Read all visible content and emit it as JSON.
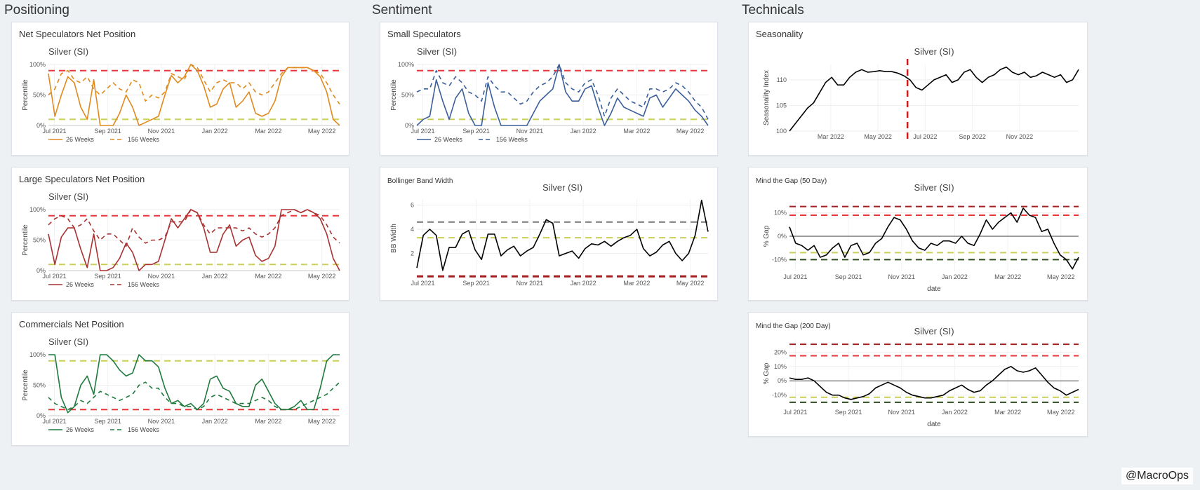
{
  "sections": [
    {
      "key": "positioning",
      "label": "Positioning"
    },
    {
      "key": "sentiment",
      "label": "Sentiment"
    },
    {
      "key": "technicals",
      "label": "Technicals"
    }
  ],
  "watermark": "@MacroOps",
  "colors": {
    "orange": "#e08a1e",
    "blue": "#3a5f9a",
    "maroon": "#a83232",
    "green": "#1f7a3d",
    "red_band": "#e8363b",
    "yellow_band": "#c9cf57",
    "dark_red_band": "#a31f1f",
    "dark_green_band": "#2e4b1d",
    "gray_band": "#777777",
    "seasonal_marker": "#d01a1a"
  },
  "cards": {
    "net_spec": {
      "title": "Net Speculators Net Position"
    },
    "large_spec": {
      "title": "Large Speculators Net Position"
    },
    "commercials": {
      "title": "Commercials Net Position"
    },
    "small_spec": {
      "title": "Small Speculators"
    },
    "bollinger": {
      "title": "Bollinger Band Width"
    },
    "seasonality": {
      "title": "Seasonality"
    },
    "gap50": {
      "title": "Mind the Gap (50 Day)"
    },
    "gap200": {
      "title": "Mind the Gap (200 Day)"
    }
  },
  "chart_data": [
    {
      "id": "net_spec",
      "type": "line",
      "title": "Silver (SI)",
      "ylabel": "Percentile",
      "xlabel": "",
      "ylim": [
        0,
        100
      ],
      "yticks": [
        0,
        50,
        100
      ],
      "ytick_labels": [
        "0%",
        "50%",
        "100%"
      ],
      "xlim": [
        0,
        49
      ],
      "xticks": [
        1,
        10,
        19,
        28,
        37,
        46
      ],
      "xtick_labels": [
        "Jul 2021",
        "Sep 2021",
        "Nov 2021",
        "Jan 2022",
        "Mar 2022",
        "May 2022"
      ],
      "hlines": [
        {
          "y": 90,
          "color": "red_band"
        },
        {
          "y": 10,
          "color": "yellow_band"
        }
      ],
      "legend": "bottom-left",
      "series": [
        {
          "name": "26 Weeks",
          "dash": false,
          "color": "orange",
          "values": [
            85,
            15,
            50,
            80,
            70,
            30,
            10,
            75,
            0,
            0,
            0,
            20,
            50,
            30,
            0,
            5,
            10,
            15,
            50,
            82,
            70,
            80,
            100,
            90,
            65,
            30,
            35,
            60,
            70,
            30,
            40,
            55,
            20,
            15,
            20,
            40,
            80,
            95,
            95,
            95,
            95,
            90,
            80,
            55,
            10,
            0
          ]
        },
        {
          "name": "156 Weeks",
          "dash": true,
          "color": "orange",
          "values": [
            50,
            60,
            85,
            90,
            75,
            70,
            80,
            60,
            50,
            60,
            70,
            60,
            55,
            75,
            70,
            40,
            50,
            45,
            55,
            85,
            80,
            75,
            100,
            95,
            75,
            55,
            70,
            75,
            70,
            70,
            60,
            70,
            55,
            50,
            55,
            70,
            85,
            95,
            95,
            95,
            95,
            90,
            85,
            70,
            50,
            35
          ]
        }
      ]
    },
    {
      "id": "large_spec",
      "type": "line",
      "title": "Silver (SI)",
      "ylabel": "Percentile",
      "xlabel": "",
      "ylim": [
        0,
        100
      ],
      "yticks": [
        0,
        50,
        100
      ],
      "ytick_labels": [
        "0%",
        "50%",
        "100%"
      ],
      "xlim": [
        0,
        49
      ],
      "xticks": [
        1,
        10,
        19,
        28,
        37,
        46
      ],
      "xtick_labels": [
        "Jul 2021",
        "Sep 2021",
        "Nov 2021",
        "Jan 2022",
        "Mar 2022",
        "May 2022"
      ],
      "hlines": [
        {
          "y": 90,
          "color": "red_band"
        },
        {
          "y": 10,
          "color": "yellow_band"
        }
      ],
      "legend": "bottom-left",
      "series": [
        {
          "name": "26 Weeks",
          "dash": false,
          "color": "maroon",
          "values": [
            60,
            10,
            55,
            70,
            70,
            35,
            5,
            60,
            0,
            0,
            5,
            20,
            45,
            30,
            0,
            10,
            10,
            15,
            50,
            85,
            70,
            85,
            100,
            95,
            70,
            30,
            30,
            60,
            75,
            40,
            50,
            55,
            25,
            15,
            20,
            40,
            100,
            100,
            100,
            95,
            100,
            95,
            85,
            60,
            20,
            0
          ]
        },
        {
          "name": "156 Weeks",
          "dash": true,
          "color": "maroon",
          "values": [
            75,
            85,
            90,
            85,
            70,
            75,
            85,
            65,
            50,
            60,
            60,
            50,
            40,
            70,
            55,
            45,
            50,
            50,
            55,
            80,
            80,
            80,
            100,
            95,
            75,
            60,
            70,
            70,
            70,
            70,
            65,
            70,
            60,
            55,
            60,
            70,
            90,
            95,
            100,
            95,
            100,
            95,
            90,
            75,
            55,
            45
          ]
        }
      ]
    },
    {
      "id": "commercials",
      "type": "line",
      "title": "Silver (SI)",
      "ylabel": "Percentile",
      "xlabel": "",
      "ylim": [
        0,
        100
      ],
      "yticks": [
        0,
        50,
        100
      ],
      "ytick_labels": [
        "0%",
        "50%",
        "100%"
      ],
      "xlim": [
        0,
        49
      ],
      "xticks": [
        1,
        10,
        19,
        28,
        37,
        46
      ],
      "xtick_labels": [
        "Jul 2021",
        "Sep 2021",
        "Nov 2021",
        "Jan 2022",
        "Mar 2022",
        "May 2022"
      ],
      "hlines": [
        {
          "y": 90,
          "color": "yellow_band"
        },
        {
          "y": 10,
          "color": "red_band"
        }
      ],
      "legend": "bottom-left",
      "series": [
        {
          "name": "26 Weeks",
          "dash": false,
          "color": "green",
          "values": [
            100,
            100,
            30,
            5,
            15,
            50,
            65,
            35,
            100,
            100,
            90,
            75,
            65,
            70,
            100,
            90,
            90,
            80,
            45,
            20,
            25,
            15,
            20,
            10,
            20,
            60,
            65,
            45,
            40,
            20,
            15,
            15,
            50,
            60,
            40,
            20,
            10,
            10,
            15,
            25,
            10,
            10,
            45,
            90,
            100,
            100
          ]
        },
        {
          "name": "156 Weeks",
          "dash": true,
          "color": "green",
          "values": [
            30,
            20,
            15,
            10,
            15,
            25,
            20,
            30,
            40,
            35,
            30,
            25,
            30,
            35,
            50,
            55,
            45,
            45,
            30,
            20,
            20,
            15,
            15,
            10,
            15,
            30,
            35,
            30,
            25,
            20,
            20,
            20,
            25,
            30,
            25,
            15,
            10,
            10,
            10,
            15,
            20,
            25,
            30,
            35,
            45,
            55
          ]
        }
      ]
    },
    {
      "id": "small_spec",
      "type": "line",
      "title": "Silver (SI)",
      "ylabel": "Percentile",
      "xlabel": "",
      "ylim": [
        0,
        100
      ],
      "yticks": [
        0,
        50,
        100
      ],
      "ytick_labels": [
        "0%",
        "50%",
        "100%"
      ],
      "xlim": [
        0,
        49
      ],
      "xticks": [
        1,
        10,
        19,
        28,
        37,
        46
      ],
      "xtick_labels": [
        "Jul 2021",
        "Sep 2021",
        "Nov 2021",
        "Jan 2022",
        "Mar 2022",
        "May 2022"
      ],
      "hlines": [
        {
          "y": 90,
          "color": "red_band"
        },
        {
          "y": 10,
          "color": "yellow_band"
        }
      ],
      "legend": "bottom-left",
      "series": [
        {
          "name": "26 Weeks",
          "dash": false,
          "color": "blue",
          "values": [
            0,
            10,
            15,
            75,
            40,
            10,
            45,
            60,
            20,
            0,
            0,
            70,
            30,
            0,
            0,
            0,
            0,
            0,
            20,
            40,
            50,
            60,
            100,
            55,
            40,
            40,
            60,
            65,
            30,
            0,
            20,
            45,
            30,
            25,
            20,
            15,
            45,
            50,
            30,
            45,
            60,
            50,
            40,
            25,
            15,
            0
          ]
        },
        {
          "name": "156 Weeks",
          "dash": true,
          "color": "blue",
          "values": [
            55,
            60,
            60,
            90,
            70,
            65,
            80,
            70,
            55,
            50,
            40,
            80,
            65,
            55,
            55,
            45,
            35,
            40,
            55,
            65,
            70,
            80,
            100,
            70,
            60,
            55,
            70,
            75,
            50,
            15,
            45,
            60,
            50,
            40,
            35,
            30,
            60,
            60,
            55,
            60,
            70,
            65,
            55,
            40,
            30,
            10
          ]
        }
      ]
    },
    {
      "id": "bollinger",
      "type": "line",
      "title": "Silver (SI)",
      "ylabel": "BB Width",
      "xlabel": "",
      "ylim": [
        0,
        6.5
      ],
      "yticks": [
        2,
        4,
        6
      ],
      "ytick_labels": [
        "2",
        "4",
        "6"
      ],
      "xlim": [
        0,
        49
      ],
      "xticks": [
        1,
        10,
        19,
        28,
        37,
        46
      ],
      "xtick_labels": [
        "Jul 2021",
        "Sep 2021",
        "Nov 2021",
        "Jan 2022",
        "Mar 2022",
        "May 2022"
      ],
      "hlines": [
        {
          "y": 4.6,
          "color": "gray_band"
        },
        {
          "y": 3.3,
          "color": "yellow_band"
        },
        {
          "y": 0.1,
          "color": "dark_red_band",
          "thick": true
        }
      ],
      "series": [
        {
          "name": "BB Width",
          "dash": false,
          "color": "black",
          "values": [
            0.8,
            3.5,
            4.0,
            3.5,
            0.6,
            2.5,
            2.5,
            3.6,
            3.9,
            2.3,
            1.5,
            3.6,
            3.6,
            1.8,
            2.3,
            2.6,
            1.8,
            2.2,
            2.5,
            3.6,
            4.8,
            4.5,
            1.8,
            2.0,
            2.2,
            1.6,
            2.4,
            2.8,
            2.7,
            3.0,
            2.6,
            3.0,
            3.3,
            3.5,
            4.0,
            2.4,
            1.8,
            2.1,
            2.7,
            3.0,
            2.0,
            1.4,
            2.0,
            3.5,
            6.4,
            3.8
          ]
        }
      ]
    },
    {
      "id": "seasonality",
      "type": "line",
      "title": "Silver (SI)",
      "ylabel": "Seasonality Index",
      "xlabel": "",
      "ylim": [
        100,
        113
      ],
      "yticks": [
        100,
        105,
        110
      ],
      "ytick_labels": [
        "100",
        "105",
        "110"
      ],
      "xlim": [
        0,
        49
      ],
      "xticks": [
        7,
        15,
        23,
        31,
        39
      ],
      "xtick_labels": [
        "Mar 2022",
        "May 2022",
        "Jul 2022",
        "Sep 2022",
        "Nov 2022"
      ],
      "hlines": [],
      "vline": {
        "x": 20,
        "color": "seasonal_marker"
      },
      "series": [
        {
          "name": "Seasonality Index",
          "dash": false,
          "color": "black",
          "values": [
            100.0,
            101.5,
            103.0,
            104.5,
            105.5,
            107.5,
            109.5,
            110.5,
            109.0,
            109.0,
            110.5,
            111.5,
            112.0,
            111.5,
            111.6,
            111.8,
            111.6,
            111.6,
            111.3,
            110.8,
            110.0,
            108.5,
            108.0,
            109.0,
            110.0,
            110.5,
            111.0,
            109.5,
            110.0,
            111.5,
            112.0,
            110.5,
            109.5,
            110.5,
            111.0,
            112.0,
            112.5,
            111.5,
            111.0,
            111.5,
            110.5,
            110.8,
            111.5,
            111.0,
            110.5,
            111.0,
            109.5,
            110.0,
            112.0
          ]
        }
      ]
    },
    {
      "id": "gap50",
      "type": "line",
      "title": "Silver (SI)",
      "ylabel": "% Gap",
      "xlabel": "date",
      "ylim": [
        -15,
        15
      ],
      "yticks": [
        -10,
        0,
        10
      ],
      "ytick_labels": [
        "-10%",
        "0%",
        "10%"
      ],
      "xlim": [
        0,
        49
      ],
      "xticks": [
        1,
        10,
        19,
        28,
        37,
        46
      ],
      "xtick_labels": [
        "Jul 2021",
        "Sep 2021",
        "Nov 2021",
        "Jan 2022",
        "Mar 2022",
        "May 2022"
      ],
      "hlines": [
        {
          "y": 12.7,
          "color": "dark_red_band"
        },
        {
          "y": 9.0,
          "color": "red_band"
        },
        {
          "y": 0,
          "color": "black",
          "solid": true
        },
        {
          "y": -7,
          "color": "yellow_band"
        },
        {
          "y": -10,
          "color": "dark_green_band"
        }
      ],
      "series": [
        {
          "name": "% Gap",
          "dash": false,
          "color": "black",
          "values": [
            4,
            -3,
            -4,
            -6,
            -4,
            -9,
            -8,
            -5,
            -3,
            -9,
            -4,
            -3,
            -8,
            -7,
            -3,
            -1,
            4,
            8,
            7,
            3,
            -2,
            -5,
            -6,
            -3,
            -4,
            -2,
            -2,
            -3,
            0,
            -3,
            -4,
            1,
            7,
            3,
            6,
            8,
            10,
            6,
            12,
            9,
            8,
            2,
            3,
            -3,
            -8,
            -10,
            -14,
            -9
          ]
        }
      ]
    },
    {
      "id": "gap200",
      "type": "line",
      "title": "Silver (SI)",
      "ylabel": "% Gap",
      "xlabel": "date",
      "ylim": [
        -18,
        28
      ],
      "yticks": [
        -10,
        0,
        10,
        20
      ],
      "ytick_labels": [
        "-10%",
        "0%",
        "10%",
        "20%"
      ],
      "xlim": [
        0,
        49
      ],
      "xticks": [
        1,
        10,
        19,
        28,
        37,
        46
      ],
      "xtick_labels": [
        "Jul 2021",
        "Sep 2021",
        "Nov 2021",
        "Jan 2022",
        "Mar 2022",
        "May 2022"
      ],
      "hlines": [
        {
          "y": 25.5,
          "color": "dark_red_band"
        },
        {
          "y": 17.5,
          "color": "red_band"
        },
        {
          "y": 0,
          "color": "black",
          "solid": true
        },
        {
          "y": -11.5,
          "color": "yellow_band"
        },
        {
          "y": -15,
          "color": "dark_green_band"
        }
      ],
      "series": [
        {
          "name": "% Gap",
          "dash": false,
          "color": "black",
          "values": [
            2,
            1,
            1,
            2,
            0,
            -4,
            -8,
            -10,
            -10,
            -12,
            -13,
            -12,
            -11,
            -9,
            -5,
            -3,
            -1,
            -3,
            -5,
            -8,
            -10,
            -11,
            -12,
            -12,
            -11,
            -10,
            -7,
            -5,
            -3,
            -6,
            -8,
            -7,
            -3,
            0,
            4,
            8,
            10,
            7,
            6,
            7,
            9,
            4,
            -1,
            -5,
            -7,
            -10,
            -8,
            -6
          ]
        }
      ]
    }
  ]
}
